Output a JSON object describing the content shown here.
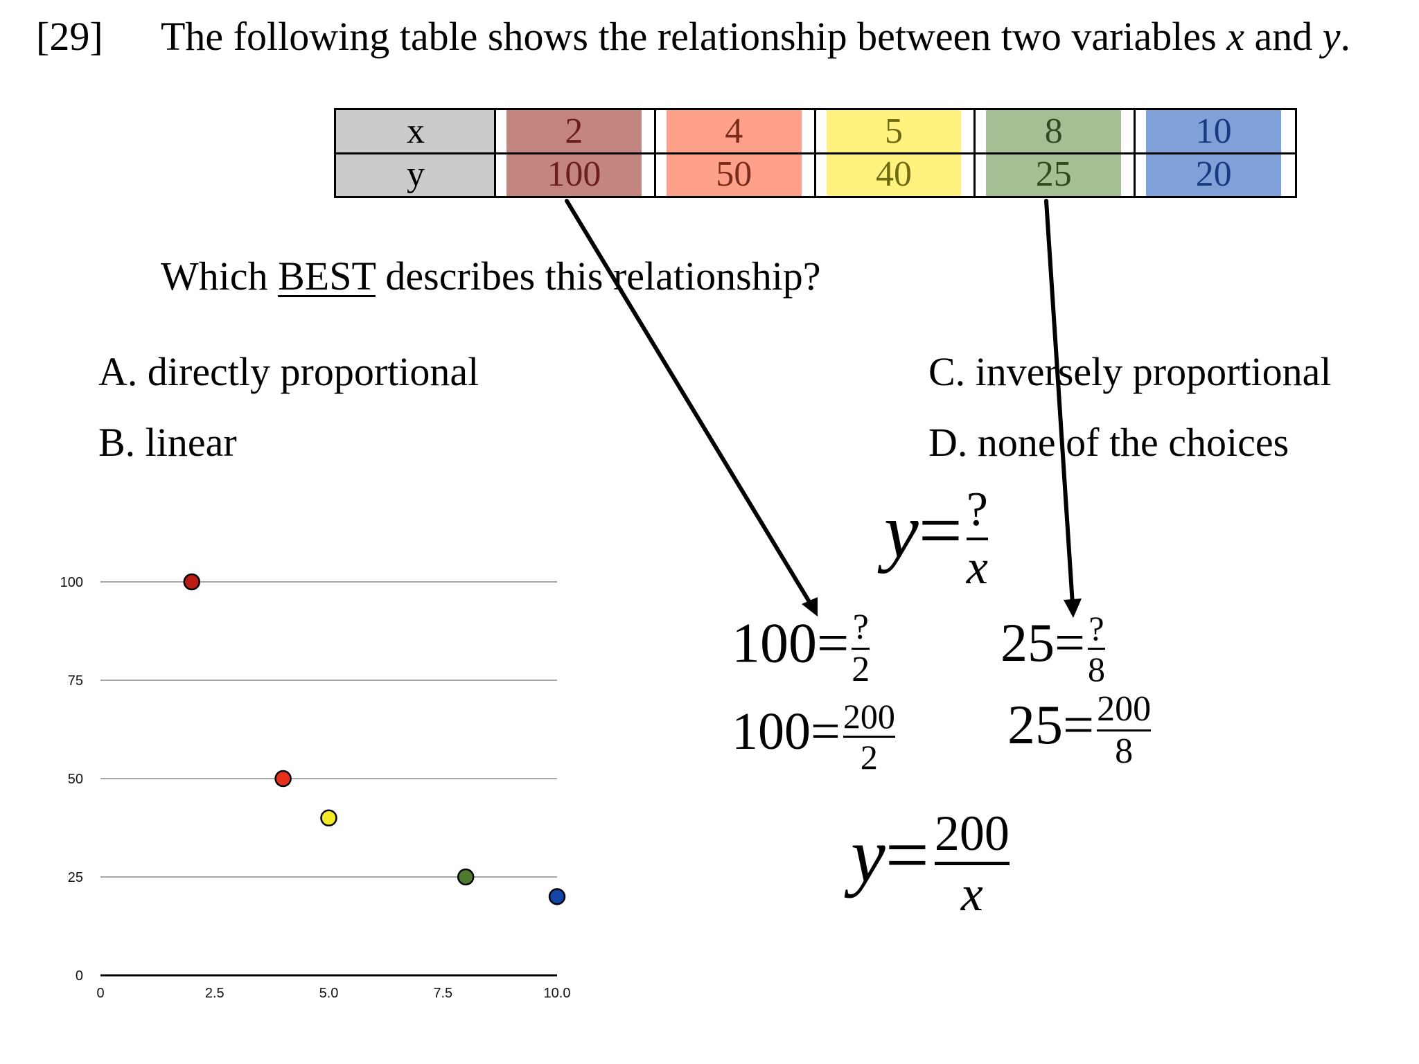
{
  "question": {
    "number": "[29]",
    "stem_before": "The following table shows the relationship between two variables ",
    "stem_x": "x",
    "stem_and": " and ",
    "stem_y": "y",
    "stem_end": ".",
    "prompt_before": "Which ",
    "prompt_emph": "BEST",
    "prompt_after": " describes this relationship?"
  },
  "table": {
    "row_labels": [
      "x",
      "y"
    ],
    "columns": [
      {
        "x": "2",
        "y": "100",
        "fill": "#c2857f",
        "text_color": "#6b1f1a"
      },
      {
        "x": "4",
        "y": "50",
        "fill": "#ffa08a",
        "text_color": "#7a2a1a"
      },
      {
        "x": "5",
        "y": "40",
        "fill": "#fff27e",
        "text_color": "#6e6a12"
      },
      {
        "x": "8",
        "y": "25",
        "fill": "#a4bf94",
        "text_color": "#2f4a22"
      },
      {
        "x": "10",
        "y": "20",
        "fill": "#80a1d8",
        "text_color": "#173a80"
      }
    ],
    "label_fill": "#cbcbcb"
  },
  "choices": {
    "a": "A.  directly proportional",
    "b": "B.  linear",
    "c": "C.  inversely proportional",
    "d": "D.  none of the choices"
  },
  "work": {
    "general_lhs": "y",
    "eq": "=",
    "unknown": "?",
    "var_x": "x",
    "eq1_lhs": "100",
    "eq1_den": "2",
    "eq2_lhs": "25",
    "eq2_den": "8",
    "constant": "200"
  },
  "chart_data": {
    "type": "scatter",
    "x_ticks": [
      "0",
      "2.5",
      "5.0",
      "7.5",
      "10.0"
    ],
    "y_ticks": [
      "0",
      "25",
      "50",
      "75",
      "100"
    ],
    "xlim": [
      0,
      10
    ],
    "ylim": [
      0,
      100
    ],
    "grid": "horizontal",
    "points": [
      {
        "x": 2,
        "y": 100,
        "color": "#b81c14"
      },
      {
        "x": 4,
        "y": 50,
        "color": "#e8301c"
      },
      {
        "x": 5,
        "y": 40,
        "color": "#f4ea2a"
      },
      {
        "x": 8,
        "y": 25,
        "color": "#4d7a2e"
      },
      {
        "x": 10,
        "y": 20,
        "color": "#1446a8"
      }
    ]
  }
}
